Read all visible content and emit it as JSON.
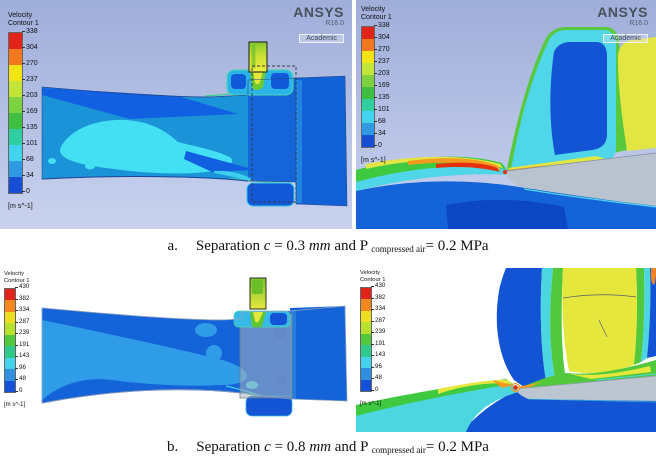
{
  "figure": {
    "logo": {
      "brand": "ANSYS",
      "release": "R16.0",
      "license": "Academic"
    },
    "legends": {
      "top": {
        "title1": "Velocity",
        "title2": "Contour 1",
        "unit": "[m s^-1]",
        "ticks": [
          "338",
          "304",
          "270",
          "237",
          "203",
          "169",
          "135",
          "101",
          "68",
          "34",
          "0"
        ],
        "band_colors": [
          "#e2231a",
          "#f4791e",
          "#f2e414",
          "#c3e539",
          "#7dd33f",
          "#3fbf3f",
          "#2ecfa0",
          "#41d4ee",
          "#2f9ae4",
          "#164fd6"
        ]
      },
      "bottom": {
        "title1": "Velocity",
        "title2": "Contour 1",
        "unit": "[m s^-1]",
        "ticks": [
          "430",
          "382",
          "334",
          "287",
          "239",
          "191",
          "143",
          "96",
          "48",
          "0"
        ],
        "band_colors": [
          "#e2231a",
          "#f4871e",
          "#eede20",
          "#b9e02c",
          "#52c83c",
          "#2fc98c",
          "#45d2ec",
          "#2f90e0",
          "#1550d8"
        ]
      }
    },
    "captions": [
      {
        "label": "a.",
        "s1": "Separation ",
        "var": "c",
        "eq": " = 0.3 ",
        "unit": "mm",
        "s2": " and P ",
        "sub": "compressed air",
        "s3": "= 0.2 MPa"
      },
      {
        "label": "b.",
        "s1": "Separation ",
        "var": "c",
        "eq": " = 0.8 ",
        "unit": "mm",
        "s2": " and P ",
        "sub": "compressed air",
        "s3": "= 0.2 MPa"
      }
    ],
    "panels": [
      {
        "id": "top-left"
      },
      {
        "id": "top-right"
      },
      {
        "id": "bottom-left"
      },
      {
        "id": "bottom-right"
      }
    ]
  },
  "chart_data": [
    {
      "type": "heatmap",
      "title": "Velocity Contour 1",
      "unit": "m s^-1",
      "colorbar_ticks": [
        338,
        304,
        270,
        237,
        203,
        169,
        135,
        101,
        68,
        34,
        0
      ],
      "caption": "a. Separation c = 0.3 mm and P compressed air = 0.2 MPa",
      "views": [
        "full domain",
        "zoom at gap"
      ]
    },
    {
      "type": "heatmap",
      "title": "Velocity Contour 1",
      "unit": "m s^-1",
      "colorbar_ticks": [
        430,
        382,
        334,
        287,
        239,
        191,
        143,
        96,
        48,
        0
      ],
      "caption": "b. Separation c = 0.8 mm and P compressed air = 0.2 MPa",
      "views": [
        "full domain",
        "zoom at gap"
      ]
    }
  ]
}
